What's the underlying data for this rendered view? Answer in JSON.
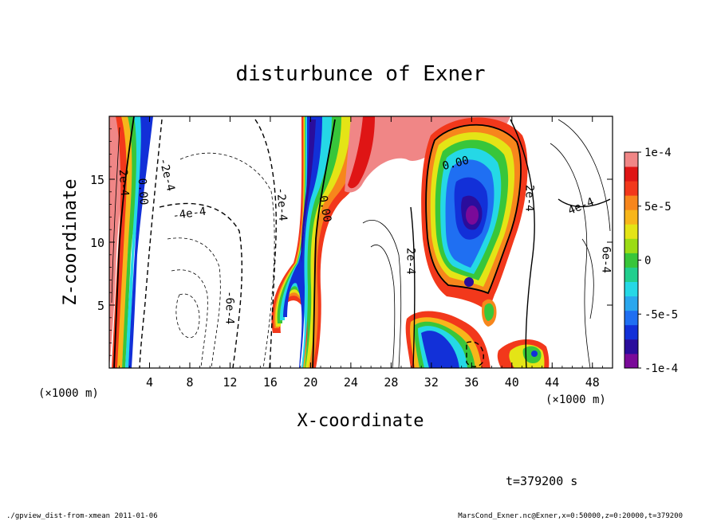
{
  "chart_data": {
    "type": "heatmap",
    "title": "disturbunce of Exner",
    "xlabel": "X-coordinate",
    "ylabel": "Z-coordinate",
    "xunit": "(×1000 m)",
    "zunit": "(×1000 m)",
    "xlim": [
      0,
      50
    ],
    "ylim": [
      0,
      20
    ],
    "xticks": [
      {
        "v": 4,
        "label": "4"
      },
      {
        "v": 8,
        "label": "8"
      },
      {
        "v": 12,
        "label": "12"
      },
      {
        "v": 16,
        "label": "16"
      },
      {
        "v": 20,
        "label": "20"
      },
      {
        "v": 24,
        "label": "24"
      },
      {
        "v": 28,
        "label": "28"
      },
      {
        "v": 32,
        "label": "32"
      },
      {
        "v": 36,
        "label": "36"
      },
      {
        "v": 40,
        "label": "40"
      },
      {
        "v": 44,
        "label": "44"
      },
      {
        "v": 48,
        "label": "48"
      }
    ],
    "yticks": [
      {
        "v": 5,
        "label": "5"
      },
      {
        "v": 10,
        "label": "10"
      },
      {
        "v": 15,
        "label": "15"
      }
    ],
    "colorbar": {
      "range": [
        -0.0001,
        0.0001
      ],
      "colors": [
        "#7a0a99",
        "#2a0d9c",
        "#1230d8",
        "#1f6ff2",
        "#2aa7ee",
        "#25d8e6",
        "#21cf8e",
        "#38c63a",
        "#9bdc15",
        "#e4e416",
        "#f7b61b",
        "#f7861c",
        "#f2381b",
        "#df1515",
        "#f08686"
      ],
      "labels": [
        {
          "v": 0.0001,
          "label": "1e-4"
        },
        {
          "v": 5e-05,
          "label": "5e-5"
        },
        {
          "v": 0,
          "label": "0"
        },
        {
          "v": -5e-05,
          "label": "-5e-5"
        },
        {
          "v": -0.0001,
          "label": "-1e-4"
        }
      ]
    },
    "contour_labels": [
      {
        "x": 1.1,
        "z": 14.7,
        "label": "2e-4",
        "rot": 86
      },
      {
        "x": 3.0,
        "z": 14.0,
        "label": "0.00",
        "rot": 86
      },
      {
        "x": 5.4,
        "z": 15.3,
        "label": "-2e-4",
        "rot": 76
      },
      {
        "x": 8.0,
        "z": 12.0,
        "label": "-4e-4",
        "rot": -8
      },
      {
        "x": 11.6,
        "z": 4.8,
        "label": "-6e-4",
        "rot": 90
      },
      {
        "x": 16.8,
        "z": 13.0,
        "label": "-2e-4",
        "rot": 86
      },
      {
        "x": 21.1,
        "z": 12.6,
        "label": "0.00",
        "rot": 80
      },
      {
        "x": 29.6,
        "z": 8.5,
        "label": "2e-4",
        "rot": 90
      },
      {
        "x": 34.5,
        "z": 16.0,
        "label": "0.00",
        "rot": -14
      },
      {
        "x": 41.4,
        "z": 13.5,
        "label": "2e-4",
        "rot": 90
      },
      {
        "x": 47.0,
        "z": 12.6,
        "label": "4e-4",
        "rot": -22
      },
      {
        "x": 49.0,
        "z": 8.6,
        "label": "6e-4",
        "rot": 90
      }
    ],
    "colored_regions": [
      {
        "name": "left-boundary-band",
        "values": "positive outer edge, negative inner edge"
      },
      {
        "name": "center-rising-plume",
        "values": "negative core (~-1e-4) with positive flanks"
      },
      {
        "name": "upper-bridge",
        "values": "positive (~1e-4)"
      },
      {
        "name": "right-cell",
        "values": "negative core (~-1e-4) near x=36, z=12"
      },
      {
        "name": "lower-right-blob",
        "values": "mixed positive/negative near z=1"
      }
    ]
  },
  "time_label": "t=379200 s",
  "footer_left": "./gpview_dist-from-xmean  2011-01-06",
  "footer_right": "MarsCond_Exner.nc@Exner,x=0:50000,z=0:20000,t=379200"
}
